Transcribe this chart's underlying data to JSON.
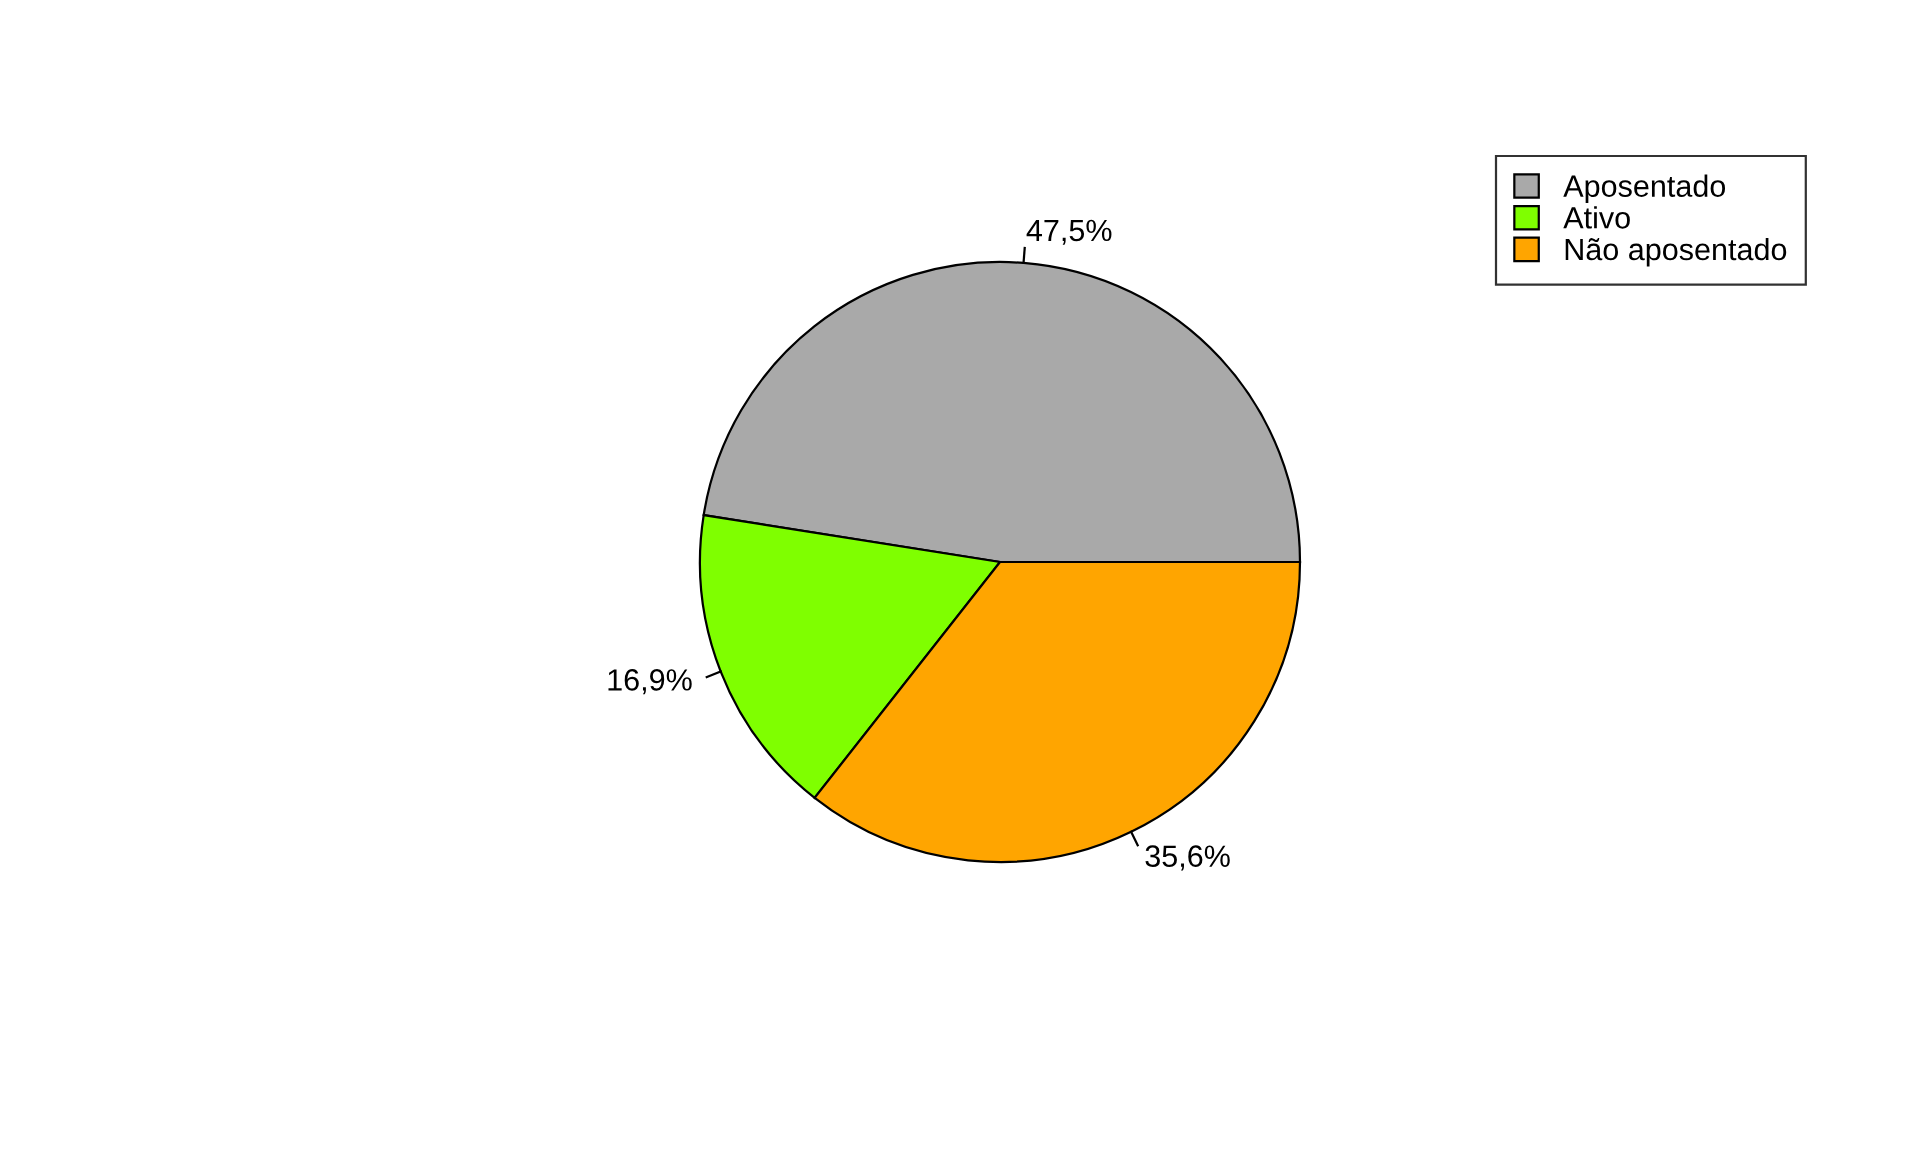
{
  "chart_data": {
    "type": "pie",
    "categories": [
      "Aposentado",
      "Ativo",
      "Não aposentado"
    ],
    "values": [
      47.5,
      16.9,
      35.6
    ],
    "colors": [
      "#a9a9a9",
      "#7fff00",
      "#ffa500"
    ],
    "value_labels": [
      "47,5%",
      "16,9%",
      "35,6%"
    ],
    "legend": "top right"
  }
}
